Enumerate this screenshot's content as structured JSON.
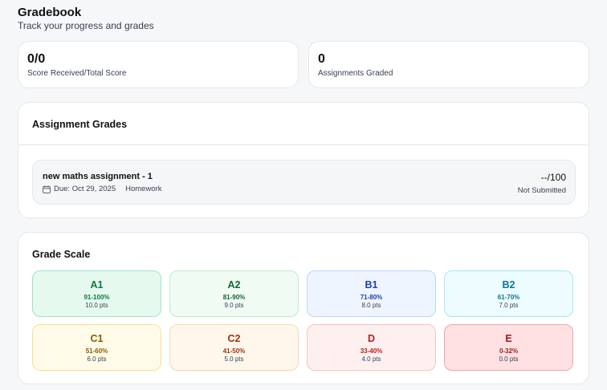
{
  "header": {
    "title": "Gradebook",
    "subtitle": "Track your progress and grades"
  },
  "stats": [
    {
      "value": "0/0",
      "label": "Score Received/Total Score"
    },
    {
      "value": "0",
      "label": "Assignments Graded"
    }
  ],
  "assignment_grades": {
    "title": "Assignment Grades",
    "items": [
      {
        "title": "new maths assignment - 1",
        "due": "Due: Oct 29, 2025",
        "type": "Homework",
        "score": "--/100",
        "status": "Not Submitted"
      }
    ]
  },
  "grade_scale": {
    "title": "Grade Scale",
    "grades": [
      {
        "letter": "A1",
        "range": "91-100%",
        "points": "10.0 pts",
        "bg": "#e6f9ef",
        "border": "#9ee5bf",
        "text": "#0f7a3e"
      },
      {
        "letter": "A2",
        "range": "81-90%",
        "points": "9.0 pts",
        "bg": "#effbf3",
        "border": "#bdeccd",
        "text": "#166534"
      },
      {
        "letter": "B1",
        "range": "71-80%",
        "points": "8.0 pts",
        "bg": "#eef5ff",
        "border": "#b9d4f7",
        "text": "#1e40af"
      },
      {
        "letter": "B2",
        "range": "61-70%",
        "points": "7.0 pts",
        "bg": "#ecfcff",
        "border": "#a6e8f3",
        "text": "#0e7490"
      },
      {
        "letter": "C1",
        "range": "51-60%",
        "points": "6.0 pts",
        "bg": "#fffbe8",
        "border": "#f5e190",
        "text": "#8a5a00"
      },
      {
        "letter": "C2",
        "range": "41-50%",
        "points": "5.0 pts",
        "bg": "#fff6ec",
        "border": "#f6d8b3",
        "text": "#9a3412"
      },
      {
        "letter": "D",
        "range": "33-40%",
        "points": "4.0 pts",
        "bg": "#fff0f0",
        "border": "#f4c2c2",
        "text": "#b91c1c"
      },
      {
        "letter": "E",
        "range": "0-32%",
        "points": "0.0 pts",
        "bg": "#ffe1e3",
        "border": "#eea4aa",
        "text": "#991b1b"
      }
    ]
  }
}
